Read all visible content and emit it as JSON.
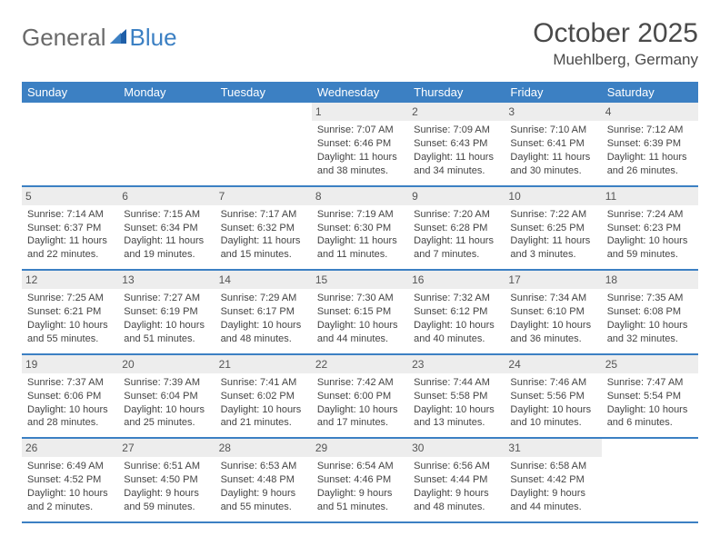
{
  "brand": {
    "part1": "General",
    "part2": "Blue"
  },
  "title": "October 2025",
  "location": "Muehlberg, Germany",
  "colors": {
    "header_bg": "#3c80c3",
    "header_text": "#ffffff",
    "daynum_bg": "#ededed",
    "border": "#3c80c3",
    "body_text": "#444444",
    "title_text": "#4a4a4a"
  },
  "weekdays": [
    "Sunday",
    "Monday",
    "Tuesday",
    "Wednesday",
    "Thursday",
    "Friday",
    "Saturday"
  ],
  "weeks": [
    [
      {
        "day": "",
        "sunrise": "",
        "sunset": "",
        "daylight1": "",
        "daylight2": ""
      },
      {
        "day": "",
        "sunrise": "",
        "sunset": "",
        "daylight1": "",
        "daylight2": ""
      },
      {
        "day": "",
        "sunrise": "",
        "sunset": "",
        "daylight1": "",
        "daylight2": ""
      },
      {
        "day": "1",
        "sunrise": "Sunrise: 7:07 AM",
        "sunset": "Sunset: 6:46 PM",
        "daylight1": "Daylight: 11 hours",
        "daylight2": "and 38 minutes."
      },
      {
        "day": "2",
        "sunrise": "Sunrise: 7:09 AM",
        "sunset": "Sunset: 6:43 PM",
        "daylight1": "Daylight: 11 hours",
        "daylight2": "and 34 minutes."
      },
      {
        "day": "3",
        "sunrise": "Sunrise: 7:10 AM",
        "sunset": "Sunset: 6:41 PM",
        "daylight1": "Daylight: 11 hours",
        "daylight2": "and 30 minutes."
      },
      {
        "day": "4",
        "sunrise": "Sunrise: 7:12 AM",
        "sunset": "Sunset: 6:39 PM",
        "daylight1": "Daylight: 11 hours",
        "daylight2": "and 26 minutes."
      }
    ],
    [
      {
        "day": "5",
        "sunrise": "Sunrise: 7:14 AM",
        "sunset": "Sunset: 6:37 PM",
        "daylight1": "Daylight: 11 hours",
        "daylight2": "and 22 minutes."
      },
      {
        "day": "6",
        "sunrise": "Sunrise: 7:15 AM",
        "sunset": "Sunset: 6:34 PM",
        "daylight1": "Daylight: 11 hours",
        "daylight2": "and 19 minutes."
      },
      {
        "day": "7",
        "sunrise": "Sunrise: 7:17 AM",
        "sunset": "Sunset: 6:32 PM",
        "daylight1": "Daylight: 11 hours",
        "daylight2": "and 15 minutes."
      },
      {
        "day": "8",
        "sunrise": "Sunrise: 7:19 AM",
        "sunset": "Sunset: 6:30 PM",
        "daylight1": "Daylight: 11 hours",
        "daylight2": "and 11 minutes."
      },
      {
        "day": "9",
        "sunrise": "Sunrise: 7:20 AM",
        "sunset": "Sunset: 6:28 PM",
        "daylight1": "Daylight: 11 hours",
        "daylight2": "and 7 minutes."
      },
      {
        "day": "10",
        "sunrise": "Sunrise: 7:22 AM",
        "sunset": "Sunset: 6:25 PM",
        "daylight1": "Daylight: 11 hours",
        "daylight2": "and 3 minutes."
      },
      {
        "day": "11",
        "sunrise": "Sunrise: 7:24 AM",
        "sunset": "Sunset: 6:23 PM",
        "daylight1": "Daylight: 10 hours",
        "daylight2": "and 59 minutes."
      }
    ],
    [
      {
        "day": "12",
        "sunrise": "Sunrise: 7:25 AM",
        "sunset": "Sunset: 6:21 PM",
        "daylight1": "Daylight: 10 hours",
        "daylight2": "and 55 minutes."
      },
      {
        "day": "13",
        "sunrise": "Sunrise: 7:27 AM",
        "sunset": "Sunset: 6:19 PM",
        "daylight1": "Daylight: 10 hours",
        "daylight2": "and 51 minutes."
      },
      {
        "day": "14",
        "sunrise": "Sunrise: 7:29 AM",
        "sunset": "Sunset: 6:17 PM",
        "daylight1": "Daylight: 10 hours",
        "daylight2": "and 48 minutes."
      },
      {
        "day": "15",
        "sunrise": "Sunrise: 7:30 AM",
        "sunset": "Sunset: 6:15 PM",
        "daylight1": "Daylight: 10 hours",
        "daylight2": "and 44 minutes."
      },
      {
        "day": "16",
        "sunrise": "Sunrise: 7:32 AM",
        "sunset": "Sunset: 6:12 PM",
        "daylight1": "Daylight: 10 hours",
        "daylight2": "and 40 minutes."
      },
      {
        "day": "17",
        "sunrise": "Sunrise: 7:34 AM",
        "sunset": "Sunset: 6:10 PM",
        "daylight1": "Daylight: 10 hours",
        "daylight2": "and 36 minutes."
      },
      {
        "day": "18",
        "sunrise": "Sunrise: 7:35 AM",
        "sunset": "Sunset: 6:08 PM",
        "daylight1": "Daylight: 10 hours",
        "daylight2": "and 32 minutes."
      }
    ],
    [
      {
        "day": "19",
        "sunrise": "Sunrise: 7:37 AM",
        "sunset": "Sunset: 6:06 PM",
        "daylight1": "Daylight: 10 hours",
        "daylight2": "and 28 minutes."
      },
      {
        "day": "20",
        "sunrise": "Sunrise: 7:39 AM",
        "sunset": "Sunset: 6:04 PM",
        "daylight1": "Daylight: 10 hours",
        "daylight2": "and 25 minutes."
      },
      {
        "day": "21",
        "sunrise": "Sunrise: 7:41 AM",
        "sunset": "Sunset: 6:02 PM",
        "daylight1": "Daylight: 10 hours",
        "daylight2": "and 21 minutes."
      },
      {
        "day": "22",
        "sunrise": "Sunrise: 7:42 AM",
        "sunset": "Sunset: 6:00 PM",
        "daylight1": "Daylight: 10 hours",
        "daylight2": "and 17 minutes."
      },
      {
        "day": "23",
        "sunrise": "Sunrise: 7:44 AM",
        "sunset": "Sunset: 5:58 PM",
        "daylight1": "Daylight: 10 hours",
        "daylight2": "and 13 minutes."
      },
      {
        "day": "24",
        "sunrise": "Sunrise: 7:46 AM",
        "sunset": "Sunset: 5:56 PM",
        "daylight1": "Daylight: 10 hours",
        "daylight2": "and 10 minutes."
      },
      {
        "day": "25",
        "sunrise": "Sunrise: 7:47 AM",
        "sunset": "Sunset: 5:54 PM",
        "daylight1": "Daylight: 10 hours",
        "daylight2": "and 6 minutes."
      }
    ],
    [
      {
        "day": "26",
        "sunrise": "Sunrise: 6:49 AM",
        "sunset": "Sunset: 4:52 PM",
        "daylight1": "Daylight: 10 hours",
        "daylight2": "and 2 minutes."
      },
      {
        "day": "27",
        "sunrise": "Sunrise: 6:51 AM",
        "sunset": "Sunset: 4:50 PM",
        "daylight1": "Daylight: 9 hours",
        "daylight2": "and 59 minutes."
      },
      {
        "day": "28",
        "sunrise": "Sunrise: 6:53 AM",
        "sunset": "Sunset: 4:48 PM",
        "daylight1": "Daylight: 9 hours",
        "daylight2": "and 55 minutes."
      },
      {
        "day": "29",
        "sunrise": "Sunrise: 6:54 AM",
        "sunset": "Sunset: 4:46 PM",
        "daylight1": "Daylight: 9 hours",
        "daylight2": "and 51 minutes."
      },
      {
        "day": "30",
        "sunrise": "Sunrise: 6:56 AM",
        "sunset": "Sunset: 4:44 PM",
        "daylight1": "Daylight: 9 hours",
        "daylight2": "and 48 minutes."
      },
      {
        "day": "31",
        "sunrise": "Sunrise: 6:58 AM",
        "sunset": "Sunset: 4:42 PM",
        "daylight1": "Daylight: 9 hours",
        "daylight2": "and 44 minutes."
      },
      {
        "day": "",
        "sunrise": "",
        "sunset": "",
        "daylight1": "",
        "daylight2": ""
      }
    ]
  ]
}
